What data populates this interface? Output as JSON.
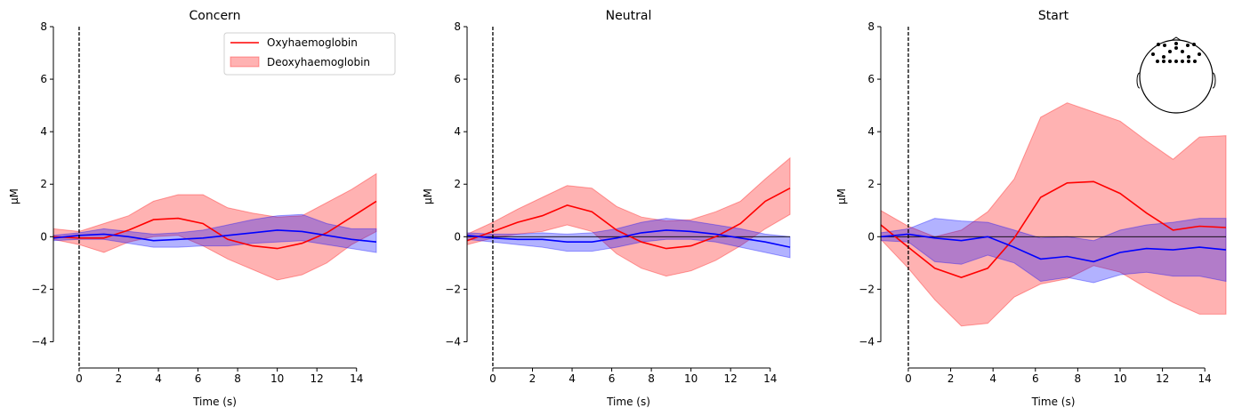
{
  "colors": {
    "oxy_line": "#ff0000",
    "oxy_band": "#ff0000",
    "deoxy_line": "#0000ff",
    "deoxy_band": "#0000ff",
    "axis": "#000000"
  },
  "legend": {
    "entries": [
      "Oxyhaemoglobin",
      "Deoxyhaemoglobin"
    ],
    "placement": "top-right of first panel"
  },
  "chart_data": [
    {
      "type": "line",
      "title": "Concern",
      "xlabel": "Time (s)",
      "ylabel": "µM",
      "xlim": [
        -1.3,
        15
      ],
      "ylim": [
        -5,
        8
      ],
      "xticks": [
        0,
        2,
        4,
        6,
        8,
        10,
        12,
        14
      ],
      "yticks": [
        -4,
        -2,
        0,
        2,
        4,
        6,
        8
      ],
      "ytick_labels": [
        "−4",
        "−2",
        "0",
        "2",
        "4",
        "6",
        "8"
      ],
      "event_line_x": 0,
      "grid": false,
      "x": [
        -1.3,
        0,
        1.25,
        2.5,
        3.75,
        5,
        6.25,
        7.5,
        8.75,
        10,
        11.25,
        12.5,
        13.75,
        15
      ],
      "series": [
        {
          "values": [
            0.0,
            -0.05,
            -0.05,
            0.25,
            0.65,
            0.7,
            0.5,
            -0.1,
            -0.35,
            -0.45,
            -0.25,
            0.15,
            0.75,
            1.35
          ],
          "lower": [
            -0.1,
            -0.3,
            -0.6,
            -0.2,
            0.0,
            0.05,
            -0.35,
            -0.85,
            -1.25,
            -1.65,
            -1.45,
            -1.0,
            -0.3,
            0.2
          ],
          "upper": [
            0.3,
            0.2,
            0.5,
            0.8,
            1.35,
            1.6,
            1.6,
            1.1,
            0.9,
            0.75,
            0.8,
            1.3,
            1.8,
            2.4
          ]
        },
        {
          "values": [
            -0.05,
            0.05,
            0.1,
            0.0,
            -0.15,
            -0.1,
            -0.05,
            0.05,
            0.15,
            0.25,
            0.2,
            0.05,
            -0.1,
            -0.2
          ],
          "lower": [
            -0.15,
            -0.1,
            -0.1,
            -0.25,
            -0.4,
            -0.4,
            -0.35,
            -0.35,
            -0.25,
            -0.2,
            -0.15,
            -0.3,
            -0.45,
            -0.6
          ],
          "upper": [
            0.05,
            0.15,
            0.3,
            0.2,
            0.1,
            0.15,
            0.25,
            0.45,
            0.65,
            0.8,
            0.85,
            0.5,
            0.3,
            0.3
          ]
        }
      ]
    },
    {
      "type": "line",
      "title": "Neutral",
      "xlabel": "Time (s)",
      "ylabel": "µM",
      "xlim": [
        -1.3,
        15
      ],
      "ylim": [
        -5,
        8
      ],
      "xticks": [
        0,
        2,
        4,
        6,
        8,
        10,
        12,
        14
      ],
      "yticks": [
        -4,
        -2,
        0,
        2,
        4,
        6,
        8
      ],
      "ytick_labels": [
        "−4",
        "−2",
        "0",
        "2",
        "4",
        "6",
        "8"
      ],
      "event_line_x": 0,
      "zero_line": true,
      "grid": false,
      "x": [
        -1.3,
        0,
        1.25,
        2.5,
        3.75,
        5,
        6.25,
        7.5,
        8.75,
        10,
        11.25,
        12.5,
        13.75,
        15
      ],
      "series": [
        {
          "values": [
            -0.15,
            0.2,
            0.55,
            0.8,
            1.2,
            0.95,
            0.25,
            -0.2,
            -0.45,
            -0.35,
            0.0,
            0.5,
            1.35,
            1.85
          ],
          "lower": [
            -0.3,
            -0.05,
            0.1,
            0.2,
            0.45,
            0.2,
            -0.65,
            -1.2,
            -1.5,
            -1.3,
            -0.9,
            -0.35,
            0.3,
            0.85
          ],
          "upper": [
            0.1,
            0.55,
            1.05,
            1.5,
            1.95,
            1.85,
            1.15,
            0.75,
            0.6,
            0.65,
            0.95,
            1.35,
            2.2,
            3.0
          ]
        },
        {
          "values": [
            0.05,
            -0.05,
            -0.1,
            -0.1,
            -0.2,
            -0.2,
            -0.05,
            0.15,
            0.25,
            0.2,
            0.1,
            -0.05,
            -0.2,
            -0.4
          ],
          "lower": [
            -0.1,
            -0.2,
            -0.3,
            -0.4,
            -0.55,
            -0.55,
            -0.4,
            -0.2,
            -0.1,
            -0.1,
            -0.2,
            -0.4,
            -0.6,
            -0.8
          ],
          "upper": [
            0.15,
            0.1,
            0.1,
            0.15,
            0.1,
            0.15,
            0.3,
            0.55,
            0.7,
            0.6,
            0.45,
            0.3,
            0.1,
            0.0
          ]
        }
      ]
    },
    {
      "type": "line",
      "title": "Start",
      "xlabel": "Time (s)",
      "ylabel": "µM",
      "xlim": [
        -1.3,
        15
      ],
      "ylim": [
        -5,
        8
      ],
      "xticks": [
        0,
        2,
        4,
        6,
        8,
        10,
        12,
        14
      ],
      "yticks": [
        -4,
        -2,
        0,
        2,
        4,
        6,
        8
      ],
      "ytick_labels": [
        "−4",
        "−2",
        "0",
        "2",
        "4",
        "6",
        "8"
      ],
      "event_line_x": 0,
      "zero_line": true,
      "grid": false,
      "inset": "head sensor map",
      "x": [
        -1.3,
        0,
        1.25,
        2.5,
        3.75,
        5,
        6.25,
        7.5,
        8.75,
        10,
        11.25,
        12.5,
        13.75,
        15
      ],
      "series": [
        {
          "values": [
            0.45,
            -0.4,
            -1.2,
            -1.55,
            -1.2,
            -0.05,
            1.5,
            2.05,
            2.1,
            1.65,
            0.9,
            0.25,
            0.4,
            0.35
          ],
          "lower": [
            -0.1,
            -1.2,
            -2.4,
            -3.4,
            -3.3,
            -2.3,
            -1.8,
            -1.6,
            -1.1,
            -1.35,
            -1.95,
            -2.5,
            -2.95,
            -2.95
          ],
          "upper": [
            1.0,
            0.4,
            0.0,
            0.25,
            0.95,
            2.2,
            4.55,
            5.1,
            4.75,
            4.4,
            3.65,
            2.95,
            3.8,
            3.85
          ]
        },
        {
          "values": [
            0.0,
            0.1,
            -0.05,
            -0.15,
            0.0,
            -0.4,
            -0.85,
            -0.75,
            -0.95,
            -0.6,
            -0.45,
            -0.5,
            -0.4,
            -0.5
          ],
          "lower": [
            -0.15,
            -0.2,
            -0.95,
            -1.05,
            -0.7,
            -1.0,
            -1.7,
            -1.55,
            -1.75,
            -1.45,
            -1.35,
            -1.5,
            -1.5,
            -1.7
          ],
          "upper": [
            0.15,
            0.3,
            0.7,
            0.6,
            0.55,
            0.25,
            -0.05,
            0.0,
            -0.15,
            0.25,
            0.45,
            0.55,
            0.7,
            0.7
          ]
        }
      ]
    }
  ]
}
